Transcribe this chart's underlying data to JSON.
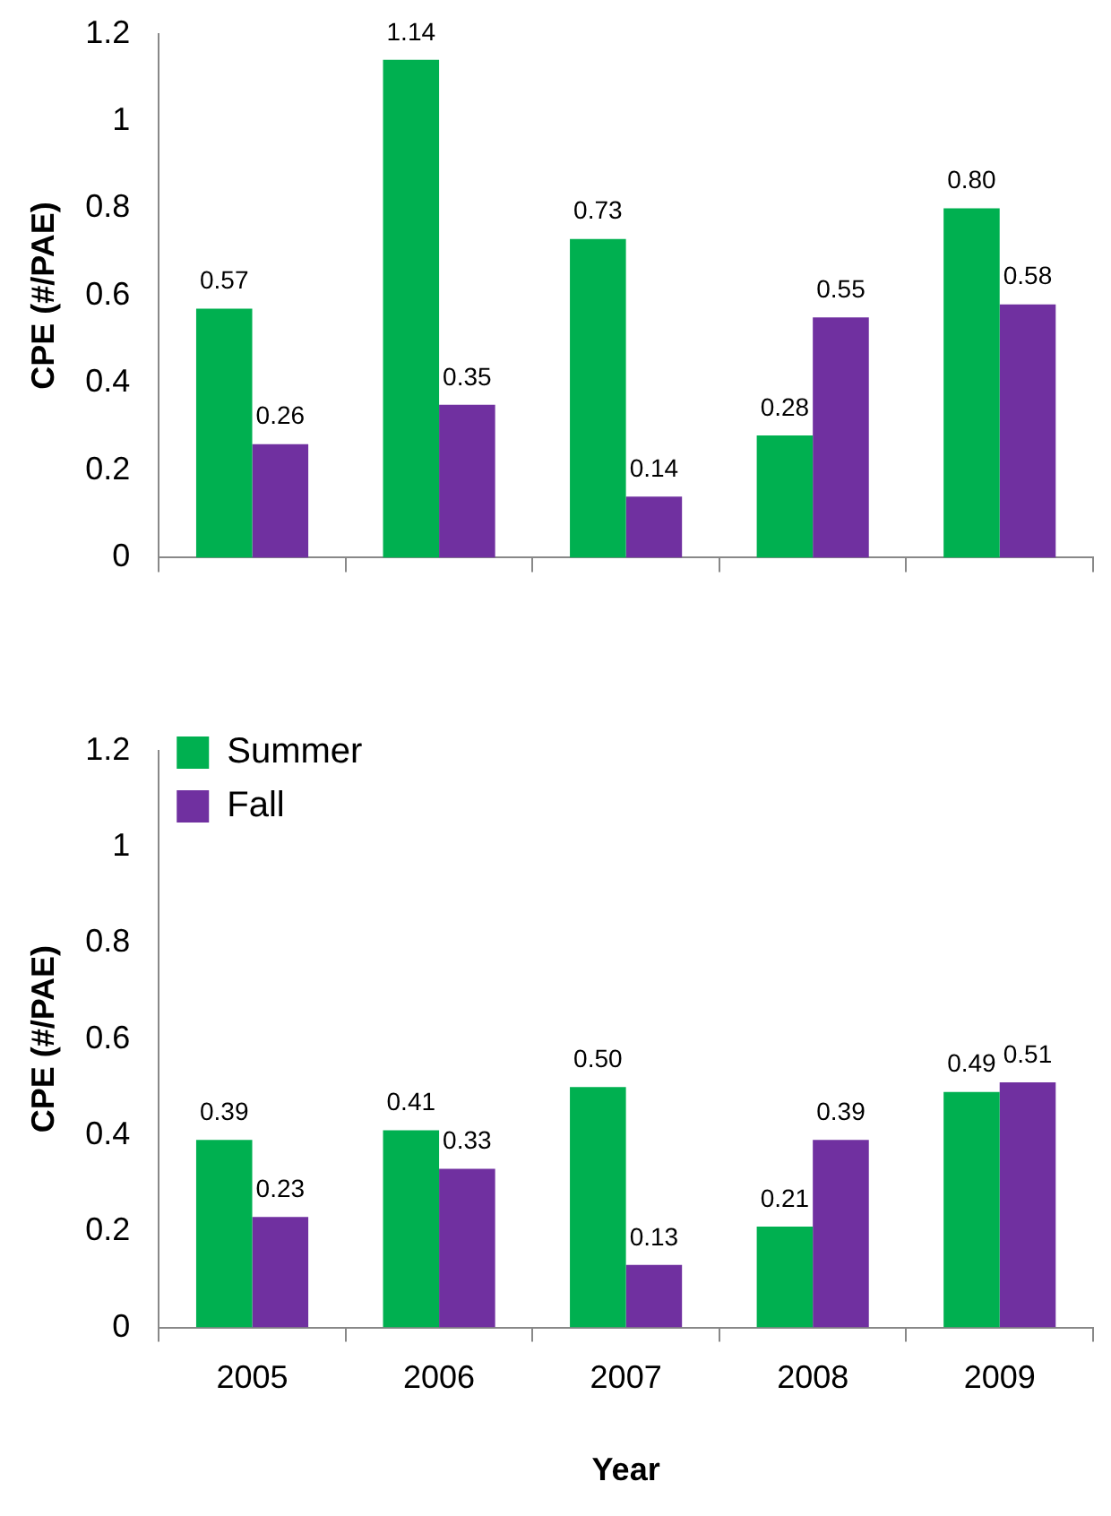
{
  "chart_data": [
    {
      "type": "bar",
      "ylabel": "CPE (#/PAE)",
      "categories": [
        "2005",
        "2006",
        "2007",
        "2008",
        "2009"
      ],
      "series": [
        {
          "color": "#00b050",
          "values": [
            0.57,
            1.14,
            0.73,
            0.28,
            0.8
          ],
          "value_labels": [
            "0.57",
            "1.14",
            "0.73",
            "0.28",
            "0.80"
          ]
        },
        {
          "color": "#7030a0",
          "values": [
            0.26,
            0.35,
            0.14,
            0.55,
            0.58
          ],
          "value_labels": [
            "0.26",
            "0.35",
            "0.14",
            "0.55",
            "0.58"
          ]
        }
      ],
      "ylim": [
        0,
        1.2
      ],
      "yticks": [
        0,
        0.2,
        0.4,
        0.6,
        0.8,
        1,
        1.2
      ],
      "grid": false,
      "legend": false,
      "tick_labels": "y"
    },
    {
      "type": "bar",
      "xlabel": "Year",
      "ylabel": "CPE (#/PAE)",
      "categories": [
        "2005",
        "2006",
        "2007",
        "2008",
        "2009"
      ],
      "series": [
        {
          "name": "Summer",
          "color": "#00b050",
          "values": [
            0.39,
            0.41,
            0.5,
            0.21,
            0.49
          ],
          "value_labels": [
            "0.39",
            "0.41",
            "0.50",
            "0.21",
            "0.49"
          ]
        },
        {
          "name": "Fall",
          "color": "#7030a0",
          "values": [
            0.23,
            0.33,
            0.13,
            0.39,
            0.51
          ],
          "value_labels": [
            "0.23",
            "0.33",
            "0.13",
            "0.39",
            "0.51"
          ]
        }
      ],
      "ylim": [
        0,
        1.2
      ],
      "yticks": [
        0,
        0.2,
        0.4,
        0.6,
        0.8,
        1,
        1.2
      ],
      "grid": false,
      "legend": "top left"
    }
  ]
}
